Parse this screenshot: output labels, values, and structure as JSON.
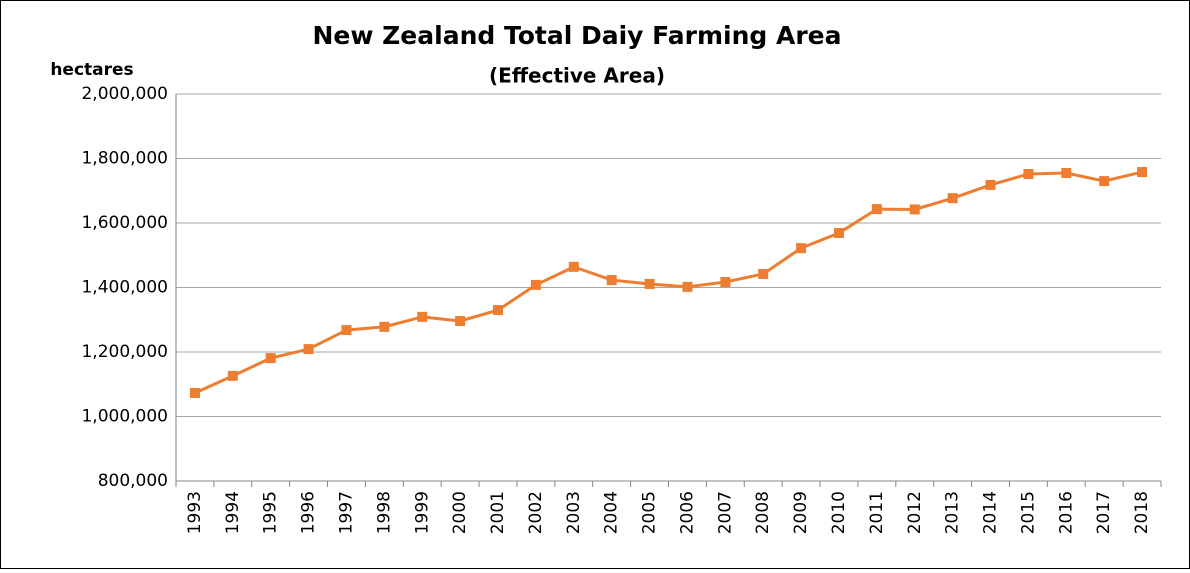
{
  "chart_data": {
    "type": "line",
    "title": "New Zealand Total Daiy Farming Area",
    "subtitle": "(Effective Area)",
    "y_label": "hectares",
    "categories": [
      "1993",
      "1994",
      "1995",
      "1996",
      "1997",
      "1998",
      "1999",
      "2000",
      "2001",
      "2002",
      "2003",
      "2004",
      "2005",
      "2006",
      "2007",
      "2008",
      "2009",
      "2010",
      "2011",
      "2012",
      "2013",
      "2014",
      "2015",
      "2016",
      "2017",
      "2018"
    ],
    "series": [
      {
        "name": "Effective Area",
        "color": "#ed7d31",
        "values": [
          1073000,
          1126000,
          1181000,
          1209000,
          1268000,
          1278000,
          1309000,
          1296000,
          1330000,
          1408000,
          1464000,
          1423000,
          1411000,
          1402000,
          1417000,
          1442000,
          1522000,
          1569000,
          1643000,
          1642000,
          1677000,
          1718000,
          1752000,
          1755000,
          1730000,
          1758000
        ]
      }
    ],
    "ylim": [
      800000,
      2000000
    ],
    "yticks": [
      {
        "value": 800000,
        "label": "800,000"
      },
      {
        "value": 1000000,
        "label": "1,000,000"
      },
      {
        "value": 1200000,
        "label": "1,200,000"
      },
      {
        "value": 1400000,
        "label": "1,400,000"
      },
      {
        "value": 1600000,
        "label": "1,600,000"
      },
      {
        "value": 1800000,
        "label": "1,800,000"
      },
      {
        "value": 2000000,
        "label": "2,000,000"
      }
    ],
    "grid": true
  }
}
